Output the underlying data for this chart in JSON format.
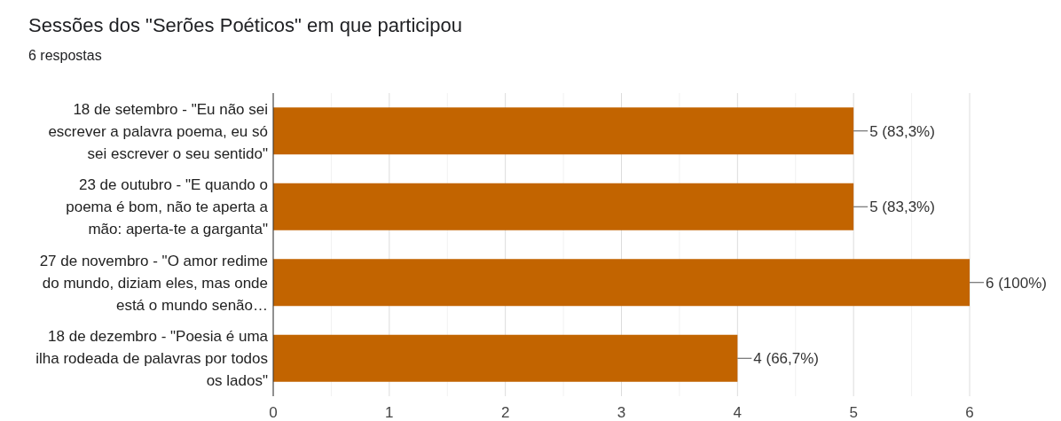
{
  "chart_data": {
    "type": "bar",
    "orientation": "horizontal",
    "title": "Sessões dos \"Serões Poéticos\" em que participou",
    "subtitle": "6 respostas",
    "categories": [
      "18 de setembro - \"Eu não sei escrever a palavra poema, eu só sei escrever o seu sentido\"",
      "23 de outubro - \"E quando o poema é bom, não te aperta a mão: aperta-te a garganta\"",
      "27 de novembro - \"O amor redime do mundo, diziam eles, mas onde está o mundo senão…",
      "18 de dezembro - \"Poesia é uma ilha rodeada de palavras por todos os lados\""
    ],
    "values": [
      5,
      5,
      6,
      4
    ],
    "value_labels": [
      "5 (83,3%)",
      "5 (83,3%)",
      "6 (100%)",
      "4 (66,7%)"
    ],
    "color": "#c26400",
    "xlim": [
      0,
      6
    ],
    "xticks": [
      0,
      1,
      2,
      3,
      4,
      5,
      6
    ],
    "grid": "x"
  }
}
